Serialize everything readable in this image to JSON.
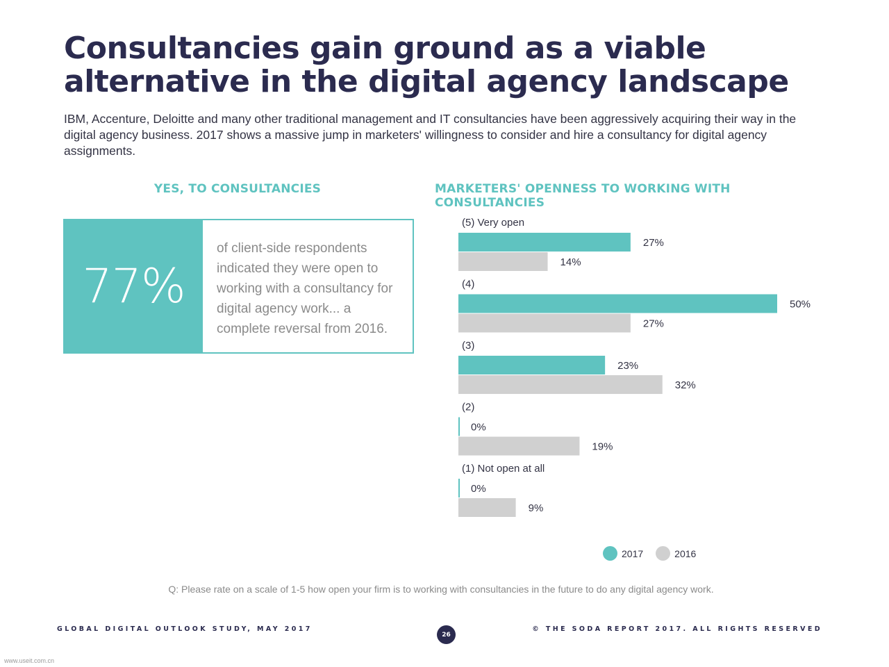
{
  "title_lines": [
    "Consultancies gain ground as a viable",
    "alternative in the digital agency landscape"
  ],
  "intro": "IBM, Accenture, Deloitte and many other traditional management and IT consultancies have been aggressively acquiring their way in the digital agency business. 2017 shows a massive jump in marketers' willingness to consider and hire a consultancy for digital agency assignments.",
  "left_heading": "YES, TO CONSULTANCIES",
  "stat": {
    "value": "77%",
    "text": "of client-side respondents indicated they were open to working with a consultancy for digital agency work... a complete reversal from 2016."
  },
  "chart_data": {
    "type": "bar",
    "orientation": "horizontal",
    "title": "MARKETERS' OPENNESS TO WORKING WITH CONSULTANCIES",
    "categories": [
      "(5) Very open",
      "(4)",
      "(3)",
      "(2)",
      "(1) Not open at all"
    ],
    "series": [
      {
        "name": "2017",
        "values": [
          27,
          50,
          23,
          0,
          0
        ],
        "color": "#5fc3c0"
      },
      {
        "name": "2016",
        "values": [
          14,
          27,
          32,
          19,
          9
        ],
        "color": "#d0d0d0"
      }
    ],
    "value_suffix": "%",
    "xlim": [
      0,
      50
    ],
    "legend": "bottom-right",
    "grid": false
  },
  "question": "Q: Please rate on a scale of 1-5 how open your firm is to working with consultancies in the future to do any digital agency work.",
  "footer": {
    "left": "GLOBAL DIGITAL OUTLOOK STUDY, MAY 2017",
    "page": "26",
    "right": "© THE SODA REPORT 2017. ALL RIGHTS RESERVED"
  },
  "watermark": "www.useit.com.cn"
}
